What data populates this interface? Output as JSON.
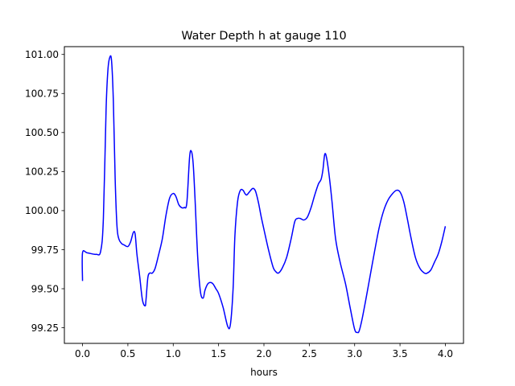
{
  "chart_data": {
    "type": "line",
    "title": "Water Depth h at gauge 110",
    "xlabel": "hours",
    "ylabel": "",
    "xlim": [
      -0.2,
      4.2
    ],
    "ylim": [
      99.15,
      101.05
    ],
    "x_ticks": [
      0.0,
      0.5,
      1.0,
      1.5,
      2.0,
      2.5,
      3.0,
      3.5,
      4.0
    ],
    "x_tick_labels": [
      "0.0",
      "0.5",
      "1.0",
      "1.5",
      "2.0",
      "2.5",
      "3.0",
      "3.5",
      "4.0"
    ],
    "y_ticks": [
      99.25,
      99.5,
      99.75,
      100.0,
      100.25,
      100.5,
      100.75,
      101.0
    ],
    "y_tick_labels": [
      "99.25",
      "99.50",
      "99.75",
      "100.00",
      "100.25",
      "100.50",
      "100.75",
      "101.00"
    ],
    "grid": false,
    "series": [
      {
        "color": "#0000ff",
        "x": [
          0.0,
          0.0,
          0.05,
          0.15,
          0.2,
          0.23,
          0.26,
          0.28,
          0.3,
          0.32,
          0.34,
          0.36,
          0.38,
          0.4,
          0.43,
          0.46,
          0.5,
          0.53,
          0.56,
          0.58,
          0.6,
          0.63,
          0.66,
          0.69,
          0.7,
          0.72,
          0.74,
          0.77,
          0.8,
          0.84,
          0.88,
          0.92,
          0.96,
          1.0,
          1.03,
          1.06,
          1.09,
          1.12,
          1.15,
          1.18,
          1.2,
          1.22,
          1.24,
          1.27,
          1.3,
          1.33,
          1.35,
          1.38,
          1.41,
          1.44,
          1.47,
          1.5,
          1.55,
          1.6,
          1.63,
          1.66,
          1.68,
          1.71,
          1.74,
          1.77,
          1.79,
          1.81,
          1.84,
          1.87,
          1.89,
          1.91,
          1.94,
          1.97,
          2.0,
          2.05,
          2.1,
          2.13,
          2.16,
          2.2,
          2.25,
          2.3,
          2.34,
          2.37,
          2.4,
          2.44,
          2.48,
          2.52,
          2.56,
          2.6,
          2.63,
          2.65,
          2.67,
          2.69,
          2.72,
          2.75,
          2.79,
          2.84,
          2.9,
          2.95,
          3.0,
          3.03,
          3.05,
          3.08,
          3.12,
          3.17,
          3.22,
          3.27,
          3.32,
          3.37,
          3.42,
          3.46,
          3.5,
          3.54,
          3.58,
          3.62,
          3.67,
          3.72,
          3.77,
          3.8,
          3.84,
          3.88,
          3.92,
          3.96,
          4.0
        ],
        "y": [
          99.55,
          99.73,
          99.73,
          99.72,
          99.74,
          99.95,
          100.65,
          100.9,
          100.98,
          100.96,
          100.7,
          100.2,
          99.9,
          99.82,
          99.79,
          99.78,
          99.77,
          99.8,
          99.86,
          99.85,
          99.72,
          99.58,
          99.43,
          99.39,
          99.43,
          99.57,
          99.6,
          99.6,
          99.63,
          99.72,
          99.82,
          99.97,
          100.08,
          100.11,
          100.09,
          100.04,
          100.02,
          100.02,
          100.05,
          100.34,
          100.38,
          100.3,
          100.08,
          99.7,
          99.48,
          99.44,
          99.49,
          99.53,
          99.54,
          99.53,
          99.5,
          99.47,
          99.38,
          99.26,
          99.27,
          99.5,
          99.84,
          100.06,
          100.13,
          100.13,
          100.11,
          100.1,
          100.12,
          100.14,
          100.14,
          100.12,
          100.05,
          99.96,
          99.88,
          99.75,
          99.64,
          99.61,
          99.6,
          99.63,
          99.7,
          99.82,
          99.93,
          99.95,
          99.95,
          99.94,
          99.96,
          100.02,
          100.1,
          100.17,
          100.2,
          100.26,
          100.36,
          100.34,
          100.22,
          100.06,
          99.82,
          99.67,
          99.53,
          99.38,
          99.24,
          99.22,
          99.23,
          99.3,
          99.42,
          99.58,
          99.74,
          99.89,
          100.0,
          100.07,
          100.11,
          100.13,
          100.12,
          100.06,
          99.95,
          99.83,
          99.7,
          99.63,
          99.6,
          99.6,
          99.62,
          99.67,
          99.72,
          99.8,
          99.9
        ]
      }
    ]
  }
}
